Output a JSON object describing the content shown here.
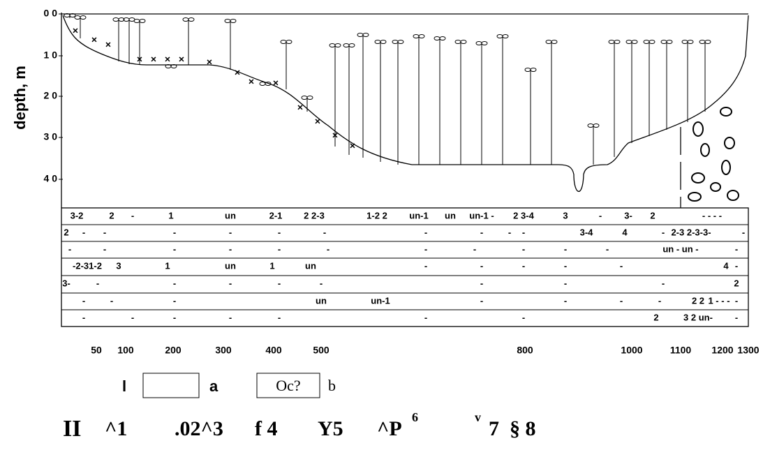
{
  "y_axis": {
    "title": "depth, m",
    "ticks": [
      "0 0",
      "1 0",
      "2 0",
      "3 0",
      "4 0"
    ]
  },
  "x_axis": {
    "ticks": [
      "50",
      "100",
      "200",
      "300",
      "400",
      "500",
      "800",
      "1000",
      "1100",
      "1200",
      "1300"
    ]
  },
  "table": {
    "rows": [
      [
        "3-2",
        "2",
        "-",
        "1",
        "un",
        "2-1",
        "2 2-3",
        "1-2 2",
        "un-1",
        "un",
        "un-1 -",
        "2 3-4",
        "3",
        "-",
        "3-",
        "2",
        "- - - -"
      ],
      [
        "2",
        "-",
        "-",
        "-",
        "-",
        "-",
        "-",
        "-",
        "-",
        "-",
        "-",
        "3-4",
        "4",
        "-",
        "2-3 2-3-3-",
        "-"
      ],
      [
        "-",
        "-",
        "-",
        "-",
        "-",
        "-",
        "-",
        "-",
        "-",
        "-",
        "-",
        "un - un -",
        "-"
      ],
      [
        "-2-31-2",
        "3",
        "1",
        "un",
        "1",
        "un",
        "-",
        "-",
        "-",
        "-",
        "-",
        "4",
        "-"
      ],
      [
        "3-",
        "-",
        "-",
        "-",
        "-",
        "-",
        "-",
        "-",
        "-",
        "2"
      ],
      [
        "-",
        "-",
        "-",
        "un",
        "un-1",
        "-",
        "-",
        "-",
        "-",
        "2 2",
        "1 - - -",
        "-"
      ],
      [
        "-",
        "-",
        "-",
        "-",
        "-",
        "-",
        "-",
        "2",
        "3 2 un-",
        "-"
      ]
    ]
  },
  "legend": {
    "items": [
      "l",
      "a",
      "Oc?",
      "b"
    ]
  },
  "footer": {
    "items": [
      "II",
      "^1",
      ".02^3",
      "f 4",
      "Y5",
      "^P",
      "6",
      "v",
      "7",
      "§ 8"
    ]
  }
}
